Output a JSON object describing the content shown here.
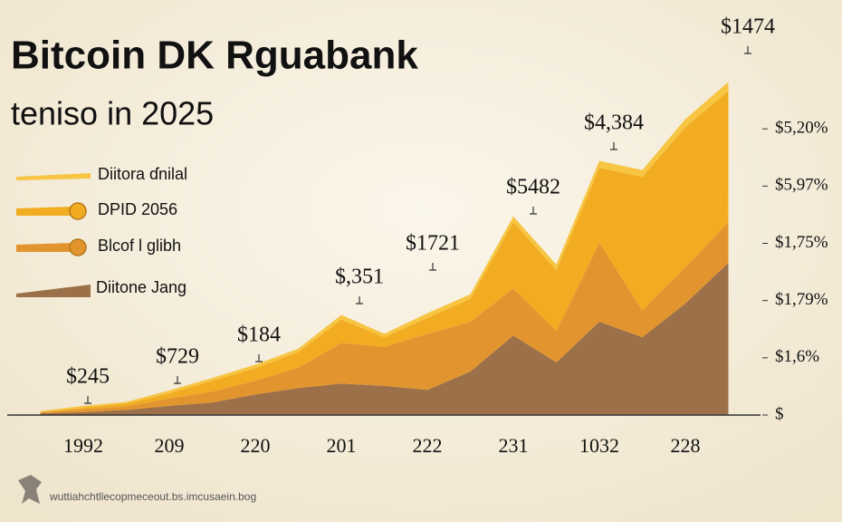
{
  "chart_data": {
    "type": "stacked-area",
    "title": "Bitcoin DK Rguabank",
    "subtitle": "teniso in 2025",
    "categories": [
      null,
      "1992",
      null,
      "209",
      null,
      "220",
      null,
      "201",
      null,
      "222",
      null,
      "231",
      null,
      "1032",
      null,
      "228",
      null
    ],
    "series": [
      {
        "name": "Diitora ɗnilal",
        "color": "#f7c542",
        "values": [
          0.02,
          0.03,
          0.03,
          0.05,
          0.05,
          0.06,
          0.06,
          0.08,
          0.06,
          0.08,
          0.08,
          0.1,
          0.1,
          0.12,
          0.12,
          0.14,
          0.16
        ]
      },
      {
        "name": "DPID 2056",
        "color": "#f2ac22",
        "values": [
          0,
          0.03,
          0.05,
          0.09,
          0.19,
          0.22,
          0.27,
          0.41,
          0.17,
          0.28,
          0.4,
          1.16,
          1.06,
          1.31,
          2.33,
          2.45,
          2.29
        ]
      },
      {
        "name": "Blcof l glibh",
        "color": "#e2952e",
        "values": [
          0.02,
          0.05,
          0.06,
          0.13,
          0.19,
          0.24,
          0.36,
          0.71,
          0.68,
          0.98,
          0.87,
          0.82,
          0.55,
          1.38,
          0.47,
          0.63,
          0.71
        ]
      },
      {
        "name": "Diitone Jang",
        "color": "#9c7048",
        "values": [
          0.03,
          0.05,
          0.09,
          0.16,
          0.22,
          0.36,
          0.47,
          0.55,
          0.51,
          0.44,
          0.76,
          1.39,
          0.92,
          1.63,
          1.36,
          1.95,
          2.66
        ]
      }
    ],
    "ylim": [
      0,
      6
    ],
    "yticks": [
      {
        "value": 0,
        "label": "$"
      },
      {
        "value": 1,
        "label": "$1,6%"
      },
      {
        "value": 2,
        "label": "$1,79%"
      },
      {
        "value": 3,
        "label": "$1,75%"
      },
      {
        "value": 4,
        "label": "$5,97%"
      },
      {
        "value": 5,
        "label": "$5,20%"
      }
    ],
    "annotations": [
      "$245",
      "$729",
      "$184",
      "$,351",
      "$1721",
      "$5482",
      "$4,384",
      "$1474"
    ],
    "source": "wuttiahchtllecopmeceout.bs.imcusaein.bog"
  }
}
